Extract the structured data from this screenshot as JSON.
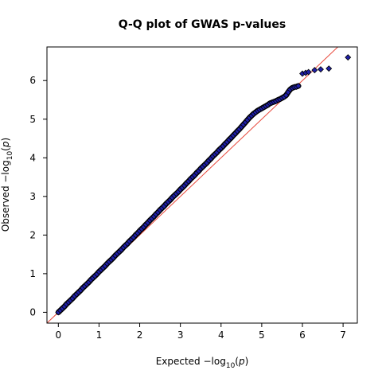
{
  "chart_data": {
    "type": "scatter",
    "title": "Q-Q plot of GWAS p-values",
    "xlabel": {
      "prefix": "Expected  −log",
      "sub": "10",
      "suffix": "(",
      "var": "p",
      "close": ")"
    },
    "ylabel": {
      "prefix": "Observed  −log",
      "sub": "10",
      "suffix": "(",
      "var": "p",
      "close": ")"
    },
    "xlim": [
      -0.28,
      7.35
    ],
    "ylim": [
      -0.28,
      6.87
    ],
    "xticks": [
      0,
      1,
      2,
      3,
      4,
      5,
      6,
      7
    ],
    "yticks": [
      0,
      1,
      2,
      3,
      4,
      5,
      6
    ],
    "grid": false,
    "reference_line": {
      "slope": 1,
      "intercept": 0,
      "color": "#e8483b"
    },
    "marker": {
      "shape": "diamond",
      "fill": "#1f1fa8",
      "edge": "#000000"
    },
    "series": [
      {
        "x": [
          0,
          0.05,
          0.1,
          0.15,
          0.2,
          0.25,
          0.3,
          0.35,
          0.4,
          0.45,
          0.5,
          0.55,
          0.6,
          0.65,
          0.7,
          0.75,
          0.8,
          0.85,
          0.9,
          0.95,
          1.0,
          1.05,
          1.1,
          1.15,
          1.2,
          1.25,
          1.3,
          1.35,
          1.4,
          1.45,
          1.5,
          1.55,
          1.6,
          1.65,
          1.7,
          1.75,
          1.8,
          1.85,
          1.9,
          1.95,
          2.0,
          2.05,
          2.1,
          2.15,
          2.2,
          2.25,
          2.3,
          2.35,
          2.4,
          2.45,
          2.5,
          2.55,
          2.6,
          2.65,
          2.7,
          2.75,
          2.8,
          2.85,
          2.9,
          2.95,
          3.0,
          3.05,
          3.1,
          3.15,
          3.2,
          3.25,
          3.3,
          3.35,
          3.4,
          3.45,
          3.5,
          3.55,
          3.6,
          3.65,
          3.7,
          3.75,
          3.8,
          3.85,
          3.9,
          3.95,
          4.0,
          4.05,
          4.1,
          4.15,
          4.2,
          4.25,
          4.3,
          4.35,
          4.4,
          4.45,
          4.5,
          4.55,
          4.6,
          4.65,
          4.7,
          4.75,
          4.8,
          4.85,
          4.9,
          4.95,
          5.0,
          5.05,
          5.1,
          5.15,
          5.2,
          5.25,
          5.3,
          5.35,
          5.4,
          5.45,
          5.5,
          5.55,
          5.6,
          5.65,
          5.7,
          5.75,
          5.8,
          5.85,
          5.9,
          6.0,
          6.08,
          6.15,
          6.3,
          6.45,
          6.65,
          7.12
        ],
        "y": [
          0,
          0.05,
          0.1,
          0.15,
          0.21,
          0.26,
          0.31,
          0.36,
          0.42,
          0.47,
          0.52,
          0.57,
          0.63,
          0.68,
          0.73,
          0.78,
          0.84,
          0.89,
          0.94,
          0.99,
          1.05,
          1.1,
          1.15,
          1.2,
          1.26,
          1.31,
          1.36,
          1.41,
          1.47,
          1.52,
          1.57,
          1.62,
          1.68,
          1.73,
          1.78,
          1.84,
          1.89,
          1.94,
          2.0,
          2.05,
          2.11,
          2.16,
          2.21,
          2.27,
          2.32,
          2.38,
          2.43,
          2.48,
          2.54,
          2.59,
          2.65,
          2.7,
          2.75,
          2.81,
          2.86,
          2.91,
          2.97,
          3.02,
          3.07,
          3.12,
          3.18,
          3.23,
          3.28,
          3.34,
          3.39,
          3.45,
          3.5,
          3.55,
          3.61,
          3.66,
          3.72,
          3.77,
          3.82,
          3.87,
          3.93,
          3.98,
          4.04,
          4.09,
          4.14,
          4.2,
          4.25,
          4.3,
          4.36,
          4.41,
          4.47,
          4.52,
          4.58,
          4.63,
          4.69,
          4.74,
          4.8,
          4.86,
          4.92,
          4.98,
          5.04,
          5.09,
          5.14,
          5.18,
          5.22,
          5.25,
          5.28,
          5.31,
          5.34,
          5.37,
          5.41,
          5.43,
          5.45,
          5.47,
          5.5,
          5.52,
          5.55,
          5.58,
          5.62,
          5.7,
          5.77,
          5.81,
          5.83,
          5.84,
          5.86,
          6.18,
          6.2,
          6.22,
          6.27,
          6.29,
          6.31,
          6.6
        ]
      }
    ]
  }
}
